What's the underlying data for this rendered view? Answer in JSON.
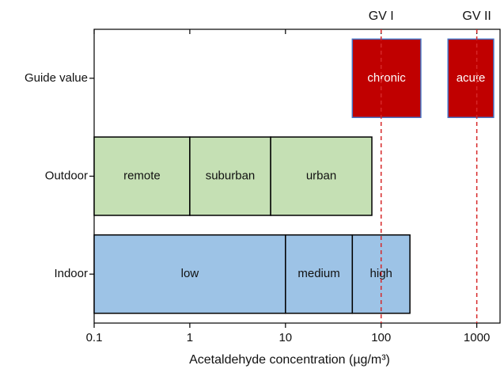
{
  "chart_data": {
    "type": "range",
    "x_label": "Acetaldehyde concentration (µg/m³)",
    "log_x": true,
    "xlim": [
      0.1,
      1750
    ],
    "xticks": [
      0.1,
      1,
      10,
      100,
      1000
    ],
    "rows": [
      {
        "category": "Guide value",
        "color": "#c00000",
        "edge_color": "#4472c4",
        "label_color": "#ffffff",
        "segments": [
          {
            "label": "chronic",
            "start": 50,
            "end": 260
          },
          {
            "label": "acute",
            "start": 500,
            "end": 1500
          }
        ]
      },
      {
        "category": "Outdoor",
        "color": "#c5e0b4",
        "edge_color": "#000000",
        "label_color": "#111111",
        "segments": [
          {
            "label": "remote",
            "start": 0.1,
            "end": 1
          },
          {
            "label": "suburban",
            "start": 1,
            "end": 7
          },
          {
            "label": "urban",
            "start": 7,
            "end": 80
          }
        ]
      },
      {
        "category": "Indoor",
        "color": "#9dc3e6",
        "edge_color": "#000000",
        "label_color": "#111111",
        "segments": [
          {
            "label": "low",
            "start": 0.1,
            "end": 10
          },
          {
            "label": "medium",
            "start": 10,
            "end": 50
          },
          {
            "label": "high",
            "start": 50,
            "end": 200
          }
        ]
      }
    ],
    "reference_lines": [
      {
        "label": "GV I",
        "value": 100,
        "color": "#d62728"
      },
      {
        "label": "GV II",
        "value": 1000,
        "color": "#d62728"
      }
    ]
  }
}
